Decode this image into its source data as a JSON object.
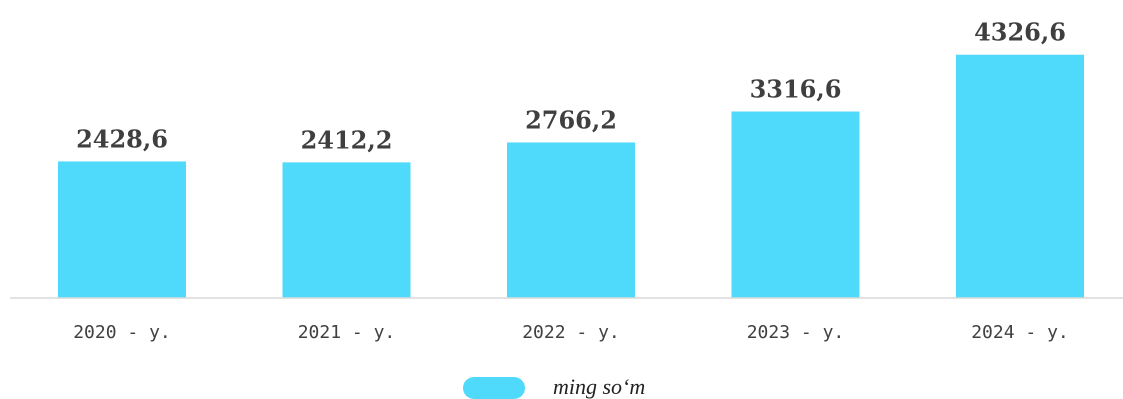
{
  "chart_data": {
    "type": "bar",
    "title": "",
    "xlabel": "",
    "ylabel": "",
    "categories": [
      "2020 - y.",
      "2021 - y.",
      "2022 - y.",
      "2023 - y.",
      "2024 - y."
    ],
    "series": [
      {
        "name": "ming so‘m",
        "values": [
          2428.6,
          2412.2,
          2766.2,
          3316.6,
          4326.6
        ],
        "labels": [
          "2428,6",
          "2412,2",
          "2766,2",
          "3316,6",
          "4326,6"
        ],
        "color": "#4fd9fb"
      }
    ],
    "ylim": [
      0,
      5300
    ],
    "grid": false,
    "legend_position": "bottom"
  }
}
